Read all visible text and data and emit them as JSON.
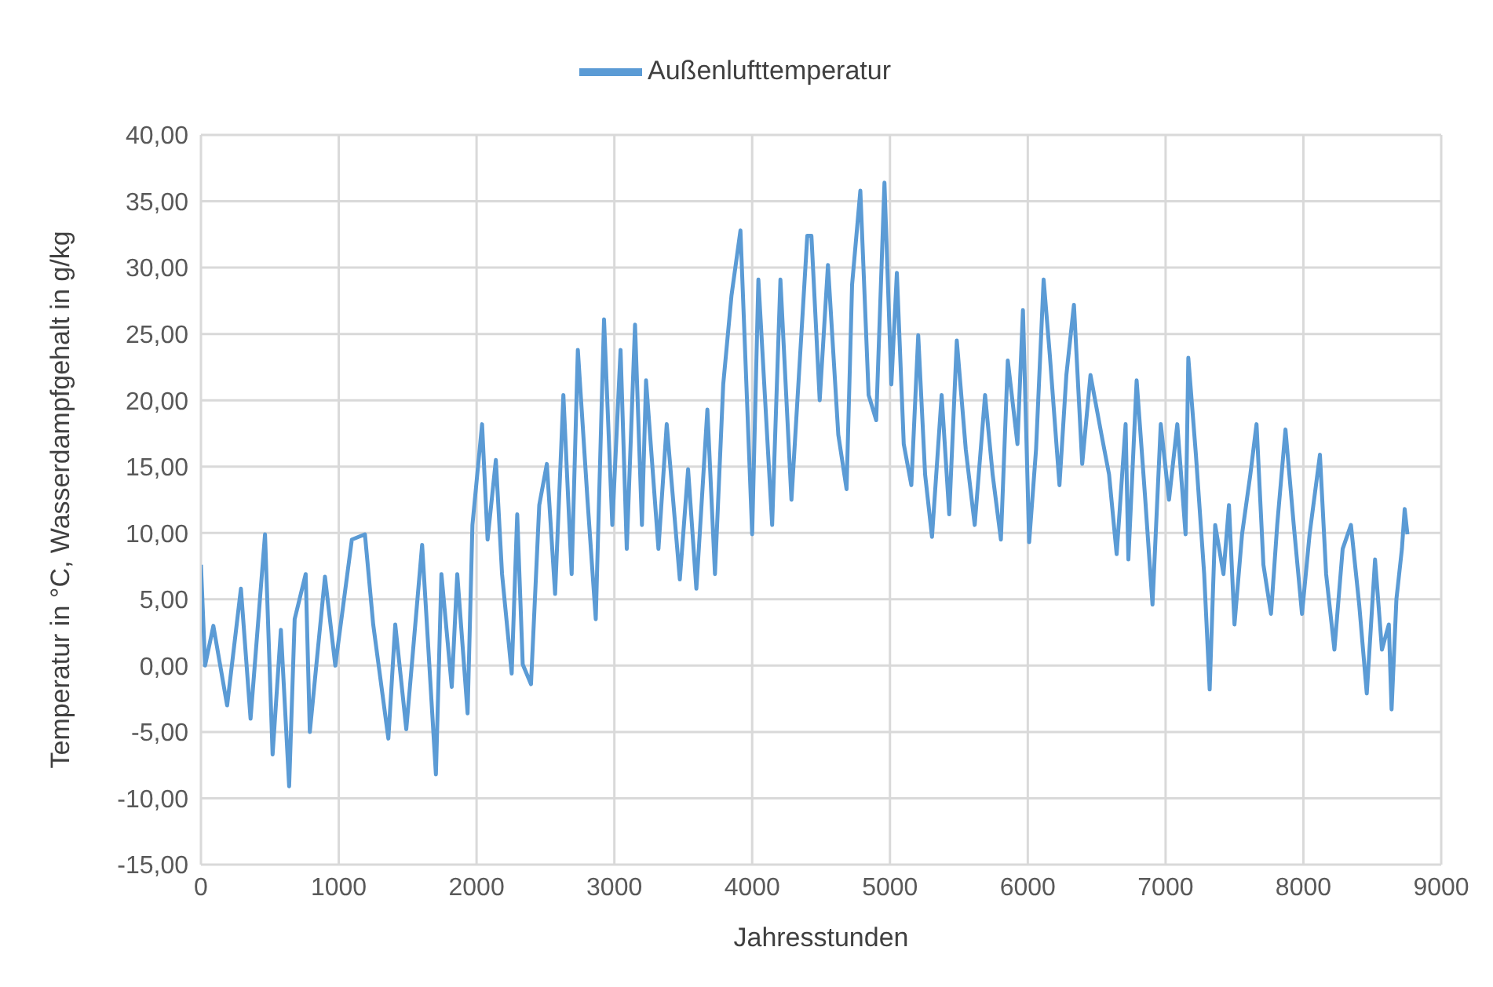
{
  "chart_data": {
    "type": "line",
    "xlabel": "Jahresstunden",
    "ylabel": "Temperatur in °C, Wasserdampfgehalt in g/kg",
    "legend": "top",
    "grid": true,
    "marker": "none",
    "line_style": "solid",
    "xlim": [
      0,
      9000
    ],
    "xticks": [
      0,
      1000,
      2000,
      3000,
      4000,
      5000,
      6000,
      7000,
      8000,
      9000
    ],
    "ylim": [
      -15,
      40
    ],
    "yticks": [
      {
        "value": -15,
        "label": "-15,00"
      },
      {
        "value": -10,
        "label": "-10,00"
      },
      {
        "value": -5,
        "label": "-5,00"
      },
      {
        "value": 0,
        "label": "0,00"
      },
      {
        "value": 5,
        "label": "5,00"
      },
      {
        "value": 10,
        "label": "10,00"
      },
      {
        "value": 15,
        "label": "15,00"
      },
      {
        "value": 20,
        "label": "20,00"
      },
      {
        "value": 25,
        "label": "25,00"
      },
      {
        "value": 30,
        "label": "30,00"
      },
      {
        "value": 35,
        "label": "35,00"
      },
      {
        "value": 40,
        "label": "40,00"
      }
    ],
    "x": [
      0,
      30,
      90,
      190,
      290,
      360,
      465,
      520,
      580,
      640,
      680,
      760,
      790,
      900,
      975,
      1095,
      1190,
      1250,
      1360,
      1410,
      1490,
      1605,
      1705,
      1745,
      1820,
      1860,
      1935,
      1970,
      2040,
      2080,
      2140,
      2185,
      2255,
      2295,
      2335,
      2395,
      2455,
      2510,
      2570,
      2630,
      2690,
      2735,
      2805,
      2865,
      2925,
      2985,
      3045,
      3090,
      3150,
      3200,
      3230,
      3320,
      3380,
      3475,
      3535,
      3595,
      3675,
      3730,
      3790,
      3850,
      3915,
      4000,
      4045,
      4145,
      4205,
      4285,
      4400,
      4430,
      4490,
      4550,
      4625,
      4685,
      4725,
      4785,
      4845,
      4900,
      4960,
      5010,
      5050,
      5100,
      5155,
      5205,
      5255,
      5305,
      5375,
      5430,
      5485,
      5550,
      5615,
      5690,
      5745,
      5805,
      5855,
      5925,
      5965,
      6010,
      6060,
      6115,
      6160,
      6230,
      6280,
      6335,
      6395,
      6455,
      6535,
      6590,
      6645,
      6710,
      6730,
      6790,
      6850,
      6905,
      6965,
      7025,
      7085,
      7145,
      7165,
      7220,
      7280,
      7320,
      7360,
      7420,
      7460,
      7500,
      7555,
      7615,
      7660,
      7710,
      7765,
      7810,
      7870,
      7930,
      7990,
      8045,
      8120,
      8165,
      8225,
      8285,
      8345,
      8405,
      8460,
      8520,
      8570,
      8620,
      8640,
      8675,
      8715,
      8735,
      8755
    ],
    "series": [
      {
        "name": "Außenlufttemperatur",
        "color": "#5b9bd5",
        "values": [
          7.6,
          0,
          3,
          -3,
          5.8,
          -4,
          9.9,
          -6.7,
          2.7,
          -9.1,
          3.5,
          6.9,
          -5,
          6.7,
          0,
          9.5,
          9.9,
          3.1,
          -5.5,
          3.1,
          -4.8,
          9.1,
          -8.2,
          6.9,
          -1.6,
          6.9,
          -3.6,
          10.6,
          18.2,
          9.5,
          15.5,
          6.9,
          -0.6,
          11.4,
          0.1,
          -1.4,
          12.1,
          15.2,
          5.4,
          20.4,
          6.9,
          23.8,
          12.5,
          3.5,
          26.1,
          10.6,
          23.8,
          8.8,
          25.7,
          10.6,
          21.5,
          8.8,
          18.2,
          6.5,
          14.8,
          5.8,
          19.3,
          6.9,
          21.2,
          27.9,
          32.8,
          9.9,
          29.1,
          10.6,
          29.1,
          12.5,
          32.4,
          32.4,
          20,
          30.2,
          17.4,
          13.3,
          28.7,
          35.8,
          20.4,
          18.5,
          36.4,
          21.2,
          29.6,
          16.7,
          13.6,
          24.9,
          14.4,
          9.7,
          20.4,
          11.4,
          24.5,
          16.3,
          10.6,
          20.4,
          14.4,
          9.5,
          23,
          16.7,
          26.8,
          9.3,
          16.3,
          29.1,
          23.4,
          13.6,
          21.9,
          27.2,
          15.2,
          21.9,
          17.4,
          14.4,
          8.4,
          18.2,
          8,
          21.5,
          12.9,
          4.6,
          18.2,
          12.5,
          18.2,
          9.9,
          23.2,
          15.9,
          6.9,
          -1.8,
          10.6,
          6.9,
          12.1,
          3.1,
          9.9,
          14.4,
          18.2,
          7.6,
          3.9,
          10.6,
          17.8,
          10.6,
          3.9,
          9.9,
          15.9,
          6.9,
          1.2,
          8.8,
          10.6,
          4.6,
          -2.1,
          8,
          1.2,
          3.1,
          -3.3,
          5,
          8.8,
          11.8,
          9.9
        ]
      }
    ]
  }
}
